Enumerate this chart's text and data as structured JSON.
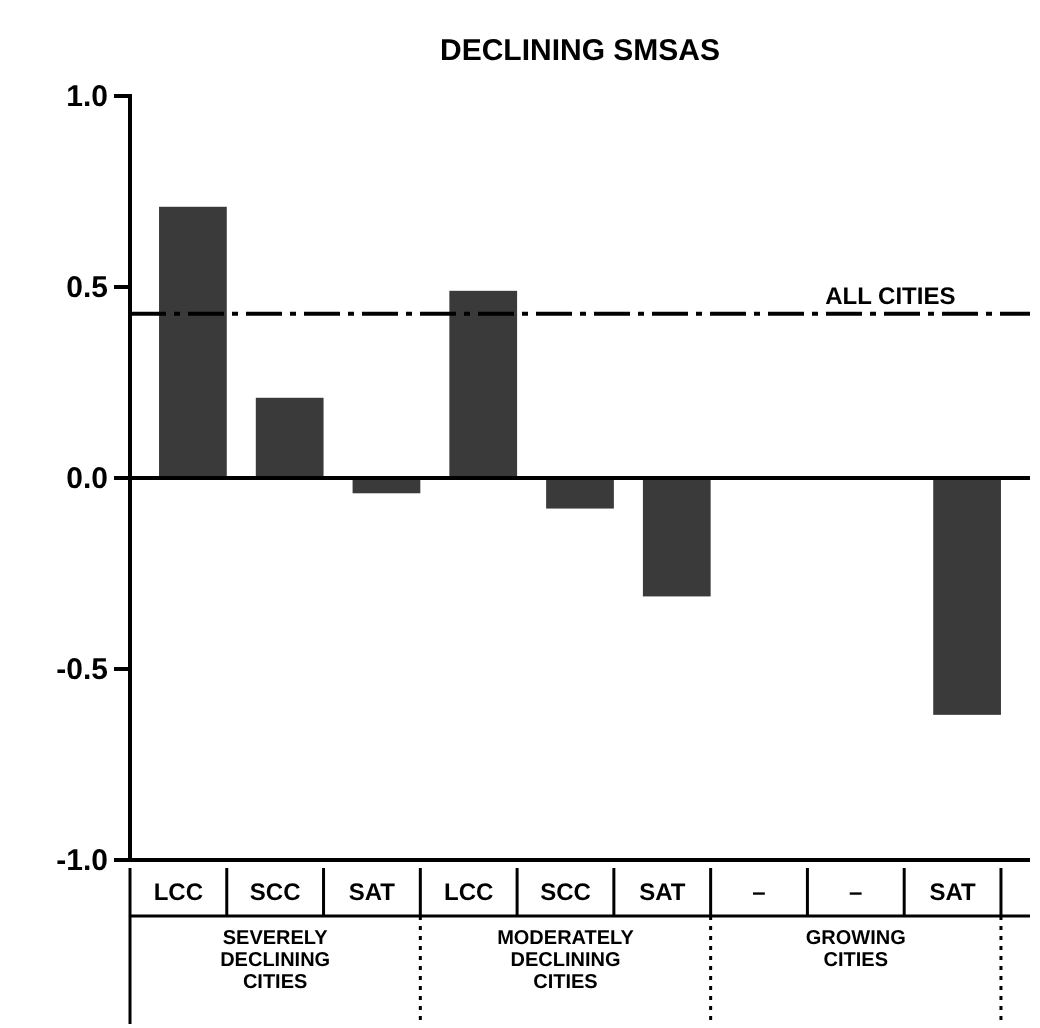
{
  "chart_data": {
    "type": "bar",
    "title": "DECLINING SMSAS",
    "categories": [
      "LCC",
      "SCC",
      "SAT",
      "LCC",
      "SCC",
      "SAT",
      "–",
      "–",
      "SAT"
    ],
    "values": [
      0.71,
      0.21,
      -0.04,
      0.49,
      -0.08,
      -0.31,
      null,
      null,
      -0.62
    ],
    "color": "#3a3a3a",
    "ylim": [
      -1.0,
      1.0
    ],
    "yticks": [
      {
        "value": -1.0,
        "label": "-1.0"
      },
      {
        "value": -0.5,
        "label": "-0.5"
      },
      {
        "value": 0,
        "label": "0.0"
      },
      {
        "value": 0.5,
        "label": "0.5"
      },
      {
        "value": 1.0,
        "label": "1.0"
      }
    ],
    "ref_lines": [
      {
        "axis": "y",
        "value": 0.43,
        "label": "ALL CITIES",
        "line_style": "dashdot",
        "color": "#000000"
      }
    ],
    "annotations": [
      "SEVERELY DECLINING CITIES",
      "MODERATELY DECLINING CITIES",
      "GROWING CITIES"
    ],
    "data_labels": false
  }
}
